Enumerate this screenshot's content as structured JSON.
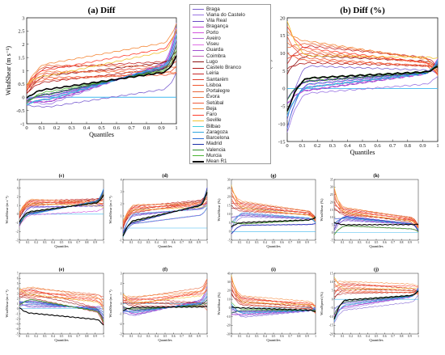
{
  "chart_data": [
    {
      "id": "a",
      "type": "line",
      "title": "(a) Diff",
      "xlabel": "Quantiles",
      "ylabel": "WindShear (m s⁻¹)",
      "xlim": [
        0,
        1
      ],
      "ylim": [
        -1,
        3
      ],
      "xticks": [
        0,
        0.1,
        0.2,
        0.3,
        0.4,
        0.5,
        0.6,
        0.7,
        0.8,
        0.9,
        1
      ],
      "yticks": [
        -1,
        -0.5,
        0,
        0.5,
        1,
        1.5,
        2,
        2.5,
        3
      ],
      "reference_line": 0,
      "grid": false,
      "series_note": "profiles drawn for each legend station; Mean R1 shown in black",
      "profile_ranges": {
        "start": [
          -0.35,
          0.5
        ],
        "mid": [
          -0.55,
          1.35
        ],
        "end": [
          0.7,
          3.0
        ]
      }
    },
    {
      "id": "b",
      "type": "line",
      "title": "(b) Diff (%)",
      "xlabel": "Quantiles",
      "ylabel": "WindShear (%)",
      "xlim": [
        0,
        1
      ],
      "ylim": [
        -15,
        20
      ],
      "xticks": [
        0,
        0.1,
        0.2,
        0.3,
        0.4,
        0.5,
        0.6,
        0.7,
        0.8,
        0.9,
        1
      ],
      "yticks": [
        -15,
        -10,
        -5,
        0,
        5,
        10,
        15,
        20
      ],
      "reference_line": 0,
      "grid": false,
      "profile_ranges": {
        "start": [
          -14,
          19
        ],
        "mid": [
          -3,
          14
        ],
        "end": [
          3,
          9
        ]
      }
    },
    {
      "id": "c",
      "type": "line",
      "title": "(c)",
      "xlabel": "Quantiles",
      "ylabel": "WindShear (m s⁻¹)",
      "xlim": [
        0,
        1
      ],
      "ylim": [
        -3,
        4
      ],
      "xticks": [
        0,
        0.1,
        0.2,
        0.3,
        0.4,
        0.5,
        0.6,
        0.7,
        0.8,
        0.9,
        1
      ],
      "yticks": [
        -3,
        -2,
        -1,
        0,
        1,
        2,
        3,
        4
      ],
      "profile_ranges": {
        "start": [
          -1.5,
          0.3
        ],
        "mid": [
          -0.3,
          1.8
        ],
        "end": [
          0.5,
          3.2
        ]
      }
    },
    {
      "id": "d",
      "type": "line",
      "title": "(d)",
      "xlabel": "Quantiles",
      "ylabel": "WindShear (m s⁻¹)",
      "xlim": [
        0,
        1
      ],
      "ylim": [
        -1,
        4
      ],
      "xticks": [
        0,
        0.1,
        0.2,
        0.3,
        0.4,
        0.5,
        0.6,
        0.7,
        0.8,
        0.9,
        1
      ],
      "yticks": [
        -1,
        0,
        1,
        2,
        3,
        4
      ],
      "profile_ranges": {
        "start": [
          -0.8,
          0.6
        ],
        "mid": [
          0.2,
          2.0
        ],
        "end": [
          1.5,
          3.5
        ]
      }
    },
    {
      "id": "g",
      "type": "line",
      "title": "(g)",
      "xlabel": "Quantiles",
      "ylabel": "WindShear (%)",
      "xlim": [
        0,
        1
      ],
      "ylim": [
        -5,
        30
      ],
      "xticks": [
        0,
        0.1,
        0.2,
        0.3,
        0.4,
        0.5,
        0.6,
        0.7,
        0.8,
        0.9,
        1
      ],
      "yticks": [
        -5,
        0,
        5,
        10,
        15,
        20,
        25,
        30
      ],
      "profile_ranges": {
        "start": [
          -3,
          27
        ],
        "mid": [
          2,
          18
        ],
        "end": [
          4,
          9
        ]
      }
    },
    {
      "id": "h",
      "type": "line",
      "title": "(h)",
      "xlabel": "Quantiles",
      "ylabel": "WindShear (%)",
      "xlim": [
        0,
        1
      ],
      "ylim": [
        -5,
        35
      ],
      "xticks": [
        0,
        0.1,
        0.2,
        0.3,
        0.4,
        0.5,
        0.6,
        0.7,
        0.8,
        0.9,
        1
      ],
      "yticks": [
        -5,
        0,
        5,
        10,
        15,
        20,
        25,
        30,
        35
      ],
      "profile_ranges": {
        "start": [
          -3,
          30
        ],
        "mid": [
          3,
          17
        ],
        "end": [
          0,
          6
        ]
      }
    },
    {
      "id": "e",
      "type": "line",
      "title": "(e)",
      "xlabel": "Quantiles",
      "ylabel": "WindShear (m s⁻¹)",
      "xlim": [
        0,
        1
      ],
      "ylim": [
        -5,
        7
      ],
      "xticks": [
        0,
        0.1,
        0.2,
        0.3,
        0.4,
        0.5,
        0.6,
        0.7,
        0.8,
        0.9,
        1
      ],
      "yticks": [
        -5,
        -4,
        -3,
        -2,
        -1,
        0,
        1,
        2,
        3,
        4,
        5,
        6,
        7
      ],
      "profile_ranges": {
        "start": [
          0,
          4
        ],
        "mid": [
          -1.5,
          4.5
        ],
        "end": [
          -4,
          3
        ]
      }
    },
    {
      "id": "f",
      "type": "line",
      "title": "(f)",
      "xlabel": "Quantiles",
      "ylabel": "WindShear (m s⁻¹)",
      "xlim": [
        0,
        1
      ],
      "ylim": [
        -3,
        3
      ],
      "xticks": [
        0,
        0.1,
        0.2,
        0.3,
        0.4,
        0.5,
        0.6,
        0.7,
        0.8,
        0.9,
        1
      ],
      "yticks": [
        -3,
        -2,
        -1,
        0,
        1,
        2,
        3
      ],
      "profile_ranges": {
        "start": [
          -1,
          1
        ],
        "mid": [
          -1.8,
          0.8
        ],
        "end": [
          -1,
          2.8
        ]
      }
    },
    {
      "id": "i",
      "type": "line",
      "title": "(i)",
      "xlabel": "Quantiles",
      "ylabel": "WindShear (%)",
      "xlim": [
        0,
        1
      ],
      "ylim": [
        -30,
        40
      ],
      "xticks": [
        0,
        0.1,
        0.2,
        0.3,
        0.4,
        0.5,
        0.6,
        0.7,
        0.8,
        0.9,
        1
      ],
      "yticks": [
        -30,
        -20,
        -10,
        0,
        10,
        20,
        30,
        40
      ],
      "profile_ranges": {
        "start": [
          -12,
          38
        ],
        "mid": [
          -15,
          15
        ],
        "end": [
          -8,
          4
        ]
      }
    },
    {
      "id": "j",
      "type": "line",
      "title": "(j)",
      "xlabel": "Quantiles",
      "ylabel": "WindSpeed (%)",
      "xlim": [
        0,
        1
      ],
      "ylim": [
        -20,
        15
      ],
      "xticks": [
        0,
        0.1,
        0.2,
        0.3,
        0.4,
        0.5,
        0.6,
        0.7,
        0.8,
        0.9,
        1
      ],
      "yticks": [
        -20,
        -15,
        -10,
        -5,
        0,
        5,
        10,
        15
      ],
      "profile_ranges": {
        "start": [
          -15,
          13
        ],
        "mid": [
          -8,
          11
        ],
        "end": [
          2,
          8
        ]
      }
    }
  ],
  "legend": [
    {
      "name": "Braga",
      "color": "#7b5fd1"
    },
    {
      "name": "Viana do Castelo",
      "color": "#9a74e3"
    },
    {
      "name": "Vila Real",
      "color": "#6b4bc4"
    },
    {
      "name": "Bragança",
      "color": "#c93fd6"
    },
    {
      "name": "Porto",
      "color": "#d455e0"
    },
    {
      "name": "Aveiro",
      "color": "#b76cd9"
    },
    {
      "name": "Viseu",
      "color": "#e070e6"
    },
    {
      "name": "Guarda",
      "color": "#a24fd0"
    },
    {
      "name": "Coimbra",
      "color": "#c45fb8"
    },
    {
      "name": "Lugo",
      "color": "#8b1010"
    },
    {
      "name": "Castelo Branco",
      "color": "#b01818"
    },
    {
      "name": "Leiria",
      "color": "#c62626"
    },
    {
      "name": "Santarém",
      "color": "#e2402d"
    },
    {
      "name": "Lisboa",
      "color": "#f0552f"
    },
    {
      "name": "Portalegre",
      "color": "#e8663a"
    },
    {
      "name": "Évora",
      "color": "#f27a45"
    },
    {
      "name": "Setúbal",
      "color": "#ef5b3a"
    },
    {
      "name": "Beja",
      "color": "#f58a3c"
    },
    {
      "name": "Faro",
      "color": "#ff3d2b"
    },
    {
      "name": "Seville",
      "color": "#f2c230"
    },
    {
      "name": "Bilbao",
      "color": "#3fcfe0"
    },
    {
      "name": "Zaragoza",
      "color": "#2fa6df"
    },
    {
      "name": "Barcelona",
      "color": "#2c6fd6"
    },
    {
      "name": "Madrid",
      "color": "#1a2fa8"
    },
    {
      "name": "Valencia",
      "color": "#2f8f2a"
    },
    {
      "name": "Murcia",
      "color": "#4bb634"
    },
    {
      "name": "Mean R1",
      "color": "#000000"
    }
  ]
}
